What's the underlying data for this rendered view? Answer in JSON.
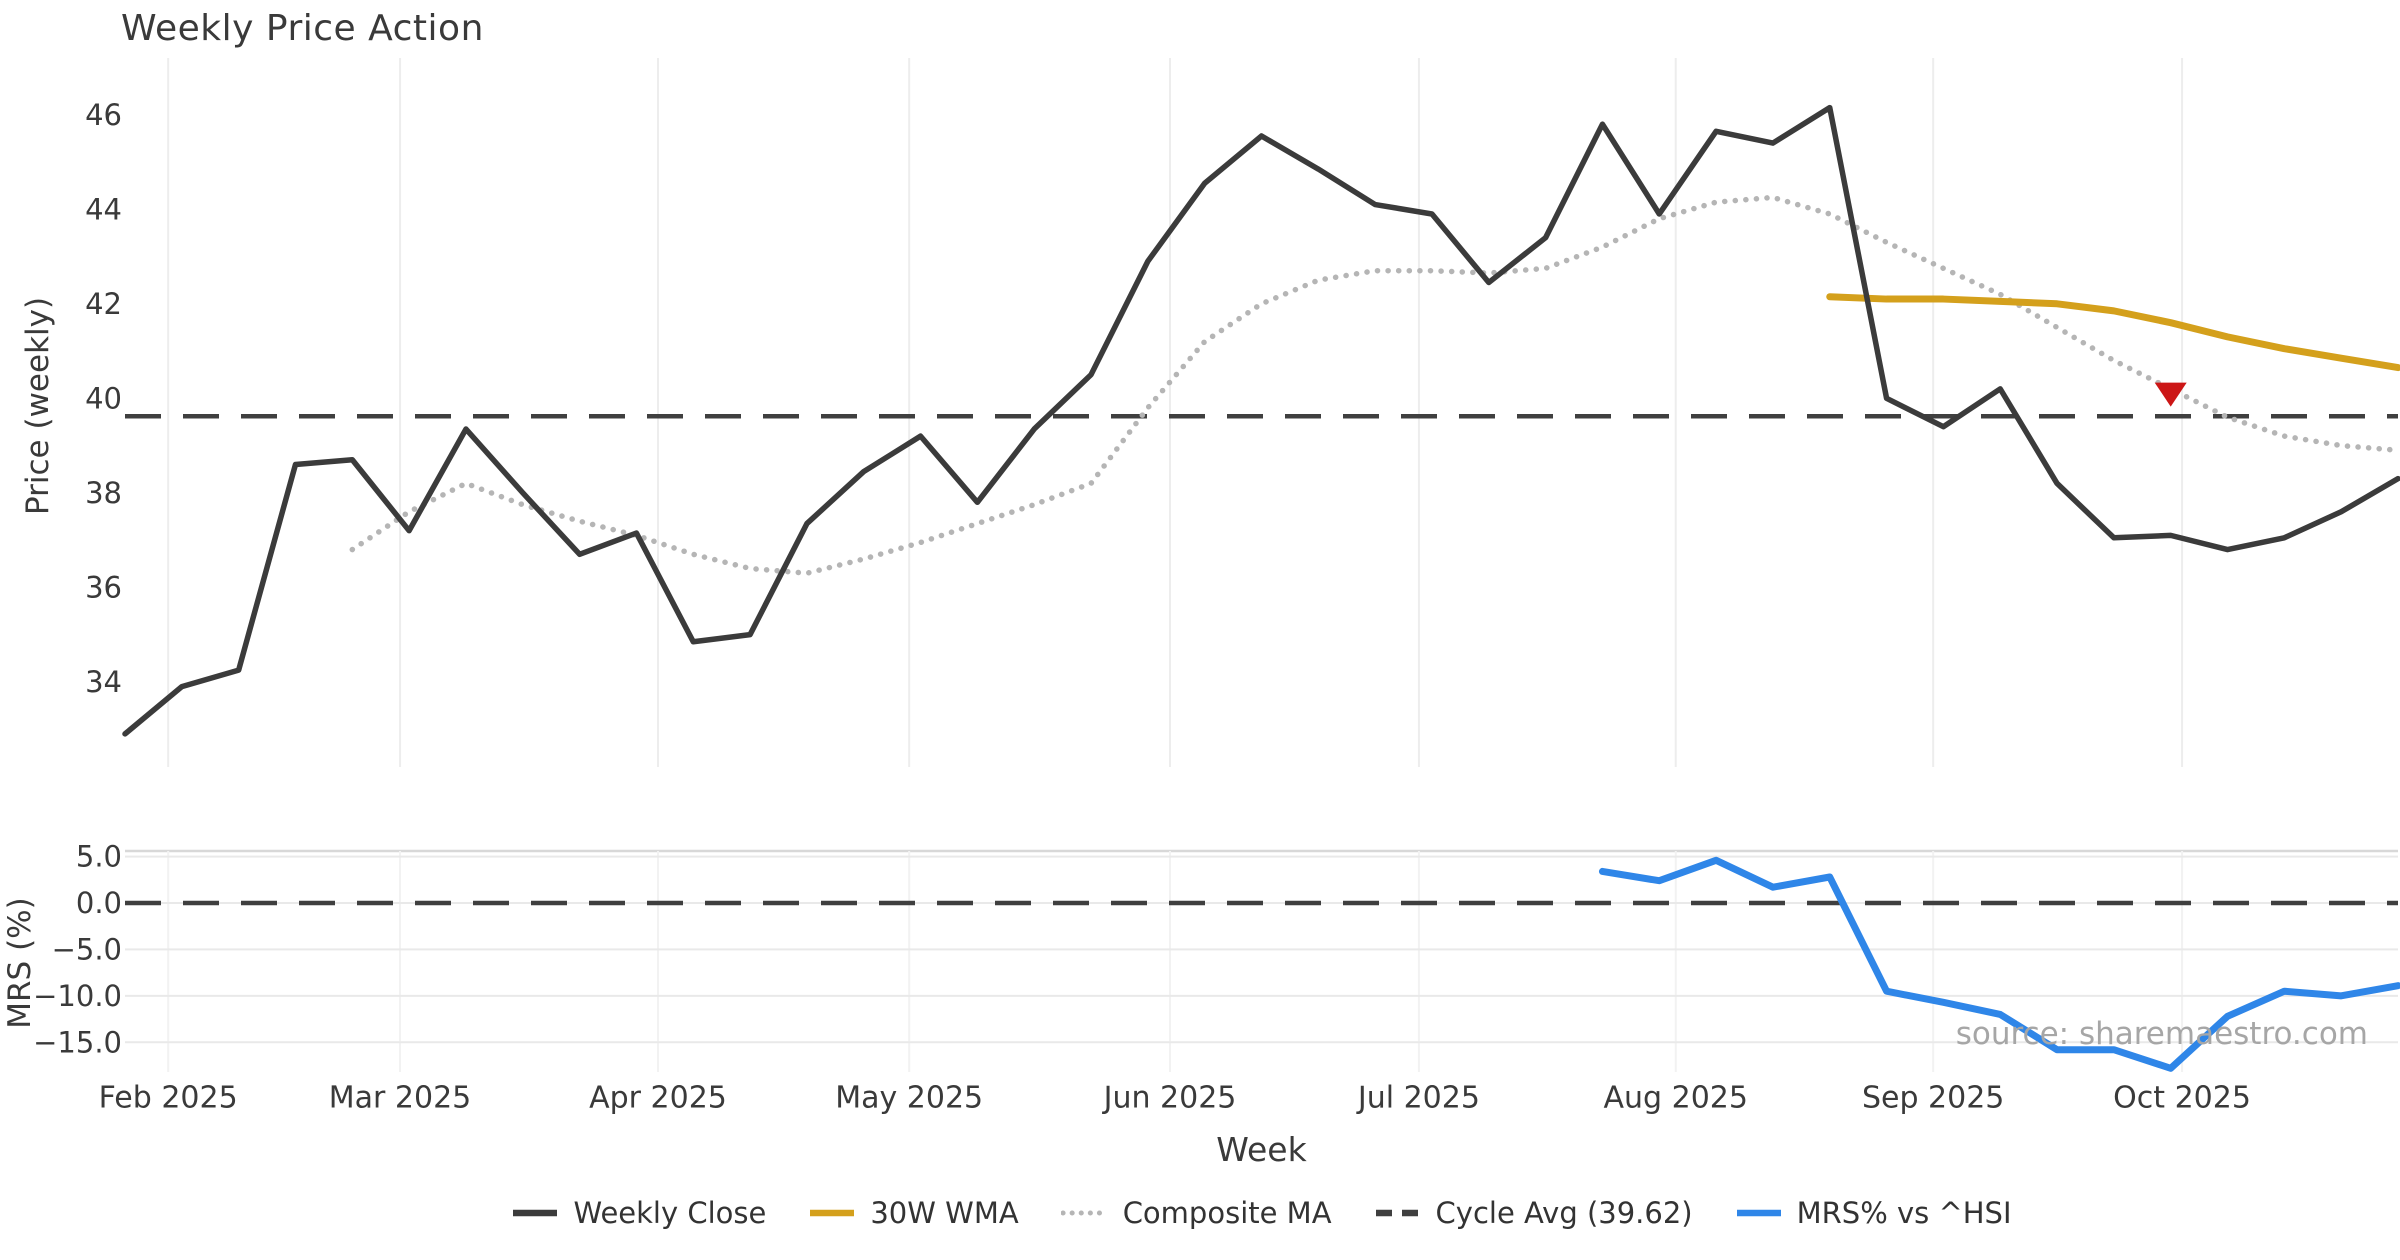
{
  "title": "Weekly Price Action",
  "source_note": "source: sharemaestro.com",
  "accent_colors": {
    "weekly_close": "#3b3b3b",
    "wma_30w": "#d4a01c",
    "composite_ma": "#b5b5b5",
    "cycle_avg": "#3f3f3f",
    "mrs": "#2f86e8",
    "signal_marker": "#cc1616",
    "gridline": "#ededed",
    "tick_text": "#3a3a3a"
  },
  "x_axis": {
    "label": "Week",
    "ticks": [
      {
        "label": "Feb 2025",
        "week": 0.76
      },
      {
        "label": "Mar 2025",
        "week": 4.84
      },
      {
        "label": "Apr 2025",
        "week": 9.38
      },
      {
        "label": "May 2025",
        "week": 13.8
      },
      {
        "label": "Jun 2025",
        "week": 18.39
      },
      {
        "label": "Jul 2025",
        "week": 22.77
      },
      {
        "label": "Aug 2025",
        "week": 27.29
      },
      {
        "label": "Sep 2025",
        "week": 31.82
      },
      {
        "label": "Oct 2025",
        "week": 36.2
      }
    ]
  },
  "legend": {
    "items": [
      {
        "label": "Weekly Close",
        "color": "#3b3b3b",
        "style": "solid"
      },
      {
        "label": "30W WMA",
        "color": "#d4a01c",
        "style": "solid"
      },
      {
        "label": "Composite MA",
        "color": "#b5b5b5",
        "style": "dotted"
      },
      {
        "label": "Cycle Avg (39.62)",
        "color": "#3f3f3f",
        "style": "dashed"
      },
      {
        "label": "MRS% vs ^HSI",
        "color": "#2f86e8",
        "style": "solid"
      }
    ]
  },
  "chart_data": [
    {
      "type": "line",
      "panel": "price",
      "title": "Weekly Price Action",
      "xlabel": "Week",
      "ylabel": "Price (weekly)",
      "ylim": [
        32.2,
        47.2
      ],
      "yticks": [
        34,
        36,
        38,
        40,
        42,
        44,
        46
      ],
      "x_unit": "week index, 41 weekly points (late Jan through late Oct 2025)",
      "grid": "vertical month gridlines only",
      "legend_position": "bottom center, shared figure legend",
      "series": [
        {
          "name": "Weekly Close",
          "style": "solid",
          "color": "#3b3b3b",
          "start_week": 0,
          "values": [
            32.9,
            33.9,
            34.25,
            38.6,
            38.7,
            37.2,
            39.35,
            38.0,
            36.7,
            37.15,
            34.85,
            35.0,
            37.35,
            38.45,
            39.2,
            37.8,
            39.35,
            40.5,
            42.9,
            44.55,
            45.55,
            44.85,
            44.1,
            43.9,
            42.45,
            43.4,
            45.8,
            43.9,
            45.65,
            45.4,
            46.15,
            40.0,
            39.4,
            40.2,
            38.2,
            37.05,
            37.1,
            36.8,
            37.05,
            37.6,
            38.3
          ]
        },
        {
          "name": "Composite MA",
          "style": "dotted",
          "color": "#b5b5b5",
          "start_week": 4,
          "values": [
            36.8,
            37.6,
            38.2,
            37.75,
            37.4,
            37.1,
            36.7,
            36.4,
            36.3,
            36.6,
            36.95,
            37.35,
            37.75,
            38.2,
            39.8,
            41.2,
            42.0,
            42.5,
            42.7,
            42.7,
            42.65,
            42.75,
            43.2,
            43.8,
            44.15,
            44.25,
            43.9,
            43.3,
            42.75,
            42.2,
            41.5,
            40.8,
            40.2,
            39.6,
            39.2,
            39.0,
            38.9
          ]
        },
        {
          "name": "30W WMA",
          "style": "solid",
          "color": "#d4a01c",
          "start_week": 30,
          "values": [
            42.15,
            42.1,
            42.1,
            42.05,
            42.0,
            41.85,
            41.6,
            41.3,
            41.05,
            40.85,
            40.65
          ]
        },
        {
          "name": "Cycle Avg",
          "style": "dashed",
          "color": "#3f3f3f",
          "constant": 39.62
        }
      ],
      "marker": {
        "shape": "triangle-down",
        "color": "#cc1616",
        "week": 36,
        "value": 40.1
      }
    },
    {
      "type": "line",
      "panel": "mrs",
      "ylabel": "MRS (%)",
      "ylim": [
        -18.2,
        5.6
      ],
      "yticks": [
        5.0,
        0.0,
        -5.0,
        -10.0,
        -15.0
      ],
      "ytick_decimals": 1,
      "grid": "horizontal gridlines at each tick plus faint vertical month lines",
      "series": [
        {
          "name": "MRS% vs ^HSI",
          "style": "solid",
          "color": "#2f86e8",
          "start_week": 26,
          "values": [
            3.4,
            2.4,
            4.6,
            1.7,
            2.8,
            -9.5,
            -10.7,
            -12.0,
            -15.8,
            -15.8,
            -17.8,
            -12.2,
            -9.5,
            -10.0,
            -8.9
          ]
        },
        {
          "name": "Zero line",
          "style": "dashed",
          "color": "#3f3f3f",
          "constant": 0
        }
      ]
    }
  ]
}
